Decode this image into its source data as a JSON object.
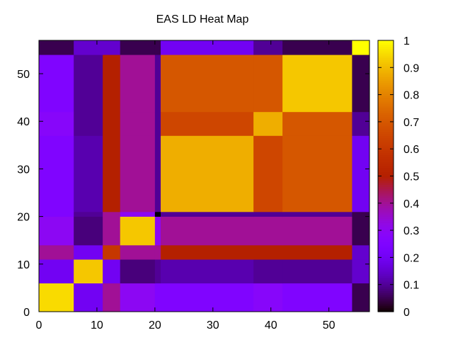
{
  "chart_data": {
    "type": "heatmap",
    "title": "EAS LD Heat Map",
    "xlabel": "",
    "ylabel": "",
    "xlim": [
      0,
      57
    ],
    "ylim": [
      0,
      57
    ],
    "x_ticks": [
      0,
      10,
      20,
      30,
      40,
      50
    ],
    "y_ticks": [
      0,
      10,
      20,
      30,
      40,
      50
    ],
    "colorbar": {
      "range": [
        0,
        1
      ],
      "ticks": [
        "0",
        "0.1",
        "0.2",
        "0.3",
        "0.4",
        "0.5",
        "0.6",
        "0.7",
        "0.8",
        "0.9",
        "1"
      ],
      "palette": "gnuplot-rgbformulae-7-5-15",
      "position": "right"
    },
    "block_boundaries": [
      0,
      6,
      11,
      14,
      20,
      21,
      37,
      42,
      54,
      57
    ],
    "block_values": [
      [
        0.95,
        0.2,
        0.4,
        0.3,
        0.25,
        0.25,
        0.28,
        0.25,
        0.05
      ],
      [
        0.2,
        0.92,
        0.2,
        0.08,
        0.1,
        0.12,
        0.1,
        0.1,
        0.15
      ],
      [
        0.4,
        0.2,
        0.6,
        0.4,
        0.4,
        0.5,
        0.5,
        0.5,
        0.15
      ],
      [
        0.3,
        0.08,
        0.4,
        0.92,
        0.3,
        0.4,
        0.4,
        0.4,
        0.05
      ],
      [
        0.25,
        0.1,
        0.4,
        0.3,
        0.0,
        0.1,
        0.1,
        0.1,
        0.05
      ],
      [
        0.25,
        0.12,
        0.5,
        0.4,
        0.1,
        0.88,
        0.65,
        0.7,
        0.2
      ],
      [
        0.28,
        0.1,
        0.5,
        0.4,
        0.1,
        0.65,
        0.88,
        0.7,
        0.1
      ],
      [
        0.25,
        0.1,
        0.5,
        0.4,
        0.1,
        0.7,
        0.7,
        0.92,
        0.05
      ],
      [
        0.05,
        0.15,
        0.15,
        0.05,
        0.05,
        0.2,
        0.1,
        0.05,
        1.0
      ]
    ]
  }
}
